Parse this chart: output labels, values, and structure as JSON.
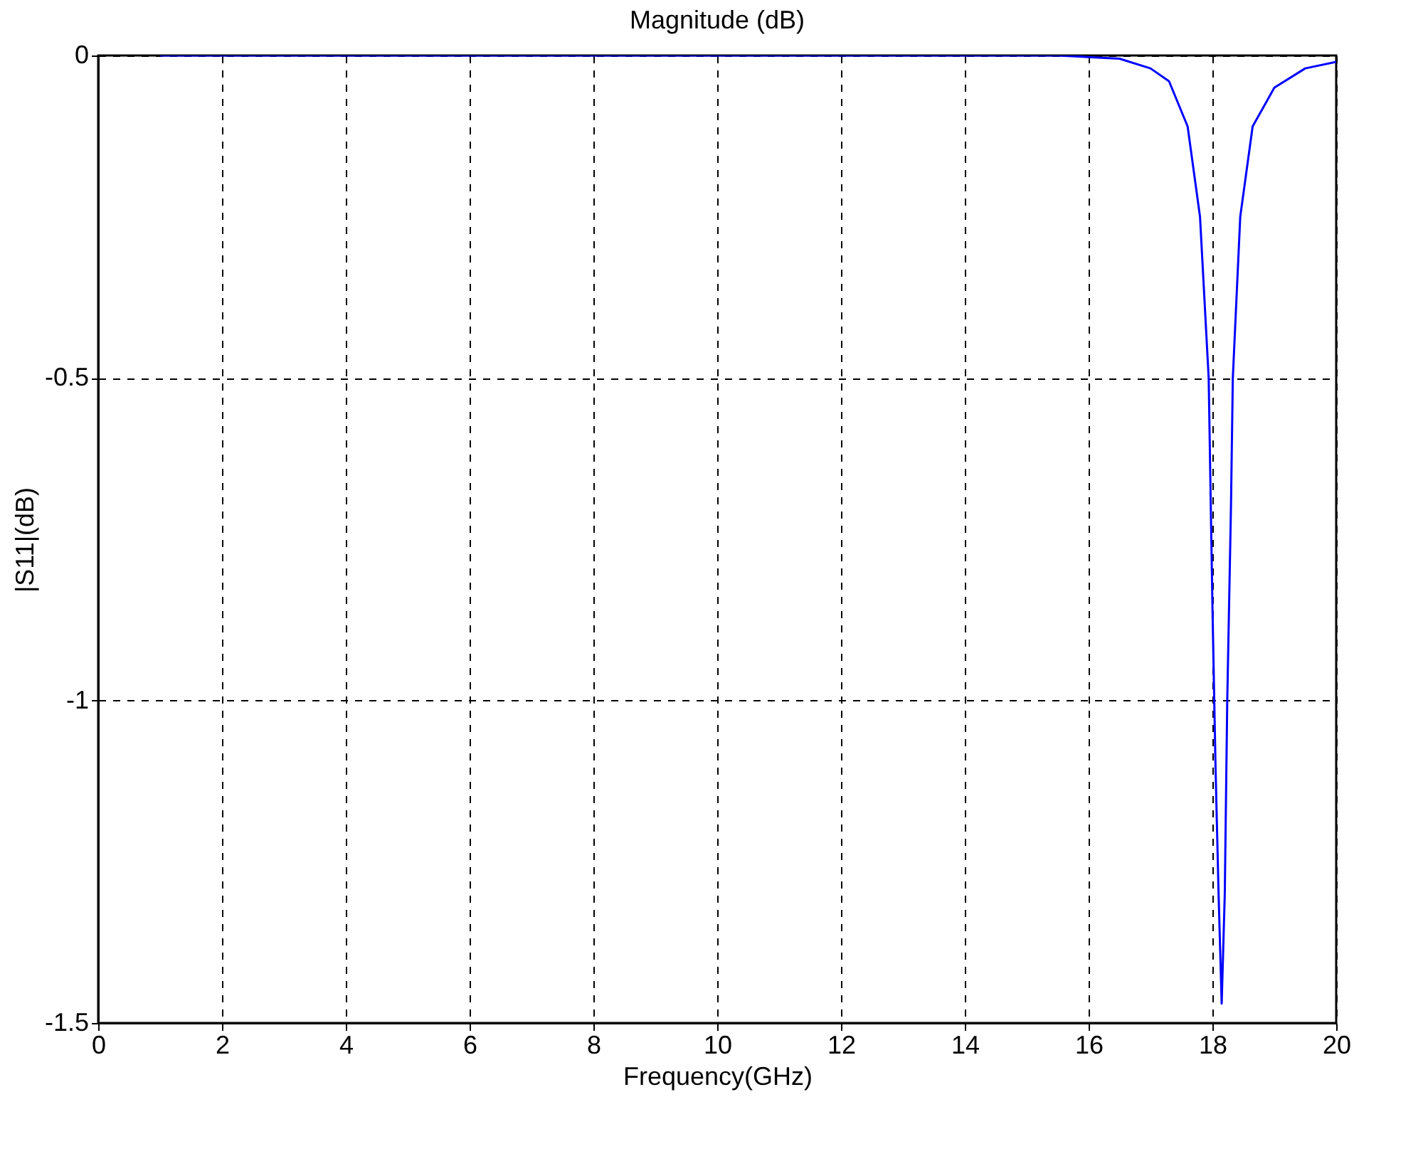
{
  "chart_data": {
    "type": "line",
    "title": "Magnitude (dB)",
    "xlabel": "Frequency(GHz)",
    "ylabel": "|S11|(dB)",
    "xlim": [
      0,
      20
    ],
    "xticks": [
      0,
      2,
      4,
      6,
      8,
      10,
      12,
      14,
      16,
      18,
      20
    ],
    "ylim": [
      -1.5,
      0
    ],
    "yticks": [
      -1.5,
      -1,
      -0.5,
      0
    ],
    "grid": true,
    "line_style": "solid",
    "series": [
      {
        "color": "#0000ff",
        "x": [
          1,
          15.5,
          16.5,
          17,
          17.3,
          17.6,
          17.8,
          17.94,
          18.0,
          18.05,
          18.1,
          18.15,
          18.2,
          18.24,
          18.3,
          18.33,
          18.45,
          18.65,
          19,
          19.5,
          20
        ],
        "values": [
          0,
          0,
          -0.005,
          -0.02,
          -0.04,
          -0.11,
          -0.25,
          -0.5,
          -0.85,
          -1.1,
          -1.3,
          -1.47,
          -1.3,
          -1.0,
          -0.7,
          -0.5,
          -0.25,
          -0.11,
          -0.05,
          -0.02,
          -0.01
        ]
      }
    ]
  }
}
